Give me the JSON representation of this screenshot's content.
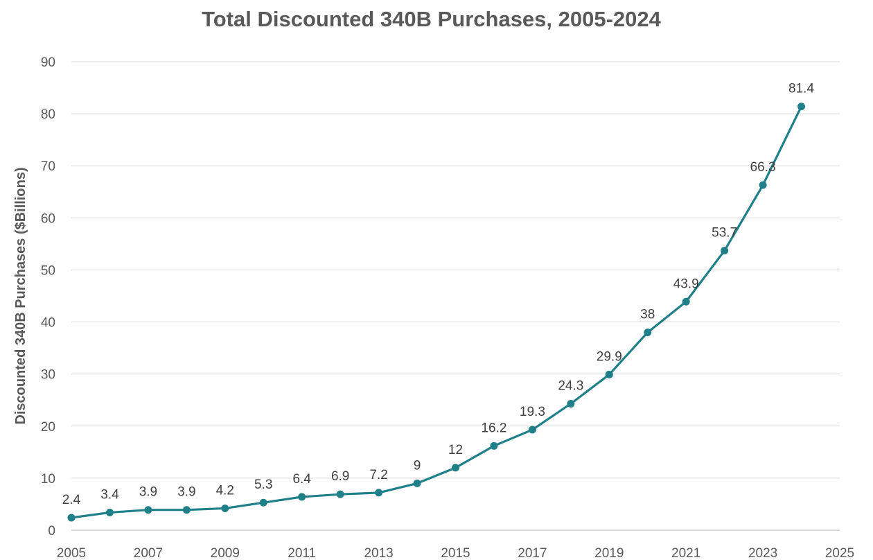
{
  "chart_data": {
    "type": "line",
    "title": "Total Discounted 340B Purchases, 2005-2024",
    "xlabel": "",
    "ylabel": "Discounted 340B Purchases ($Billions)",
    "xlim": [
      2005,
      2025
    ],
    "ylim": [
      0,
      90
    ],
    "x_ticks": [
      2005,
      2007,
      2009,
      2011,
      2013,
      2015,
      2017,
      2019,
      2021,
      2023,
      2025
    ],
    "y_ticks": [
      0,
      10,
      20,
      30,
      40,
      50,
      60,
      70,
      80,
      90
    ],
    "grid": "horizontal",
    "legend": "none",
    "color": "#1f8089",
    "series": [
      {
        "x": [
          2005,
          2006,
          2007,
          2008,
          2009,
          2010,
          2011,
          2012,
          2013,
          2014,
          2015,
          2016,
          2017,
          2018,
          2019,
          2020,
          2021,
          2022,
          2023,
          2024
        ],
        "values": [
          2.4,
          3.4,
          3.9,
          3.9,
          4.2,
          5.3,
          6.4,
          6.9,
          7.2,
          9,
          12,
          16.2,
          19.3,
          24.3,
          29.9,
          38,
          43.9,
          53.7,
          66.3,
          81.4
        ],
        "labels": [
          "2.4",
          "3.4",
          "3.9",
          "3.9",
          "4.2",
          "5.3",
          "6.4",
          "6.9",
          "7.2",
          "9",
          "12",
          "16.2",
          "19.3",
          "24.3",
          "29.9",
          "38",
          "43.9",
          "53.7",
          "66.3",
          "81.4"
        ]
      }
    ]
  }
}
